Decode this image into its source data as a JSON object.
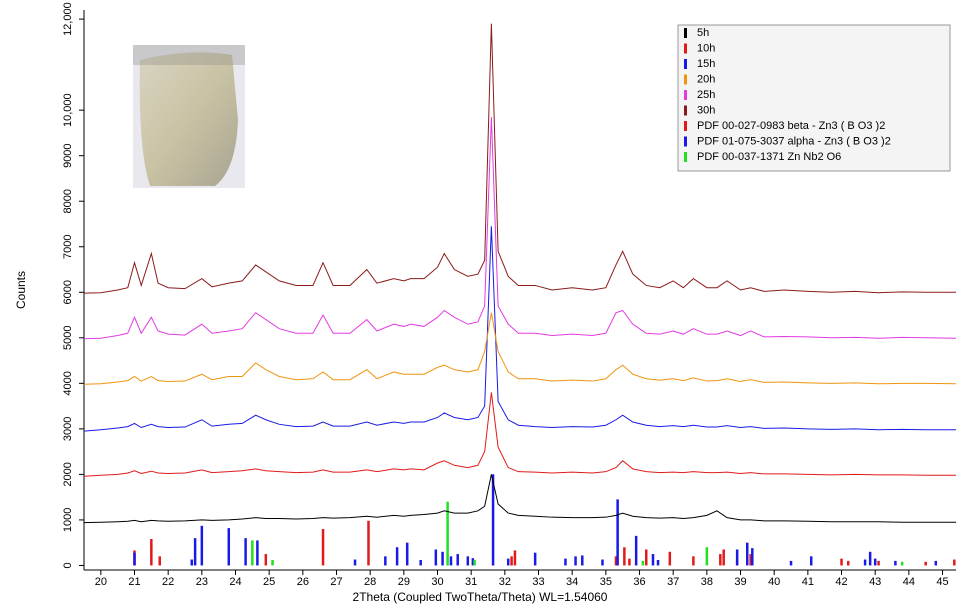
{
  "chart_data": {
    "type": "line",
    "x_label": "2Theta (Coupled TwoTheta/Theta) WL=1.54060",
    "y_label": "Counts",
    "xlim": [
      19.5,
      45.4
    ],
    "ylim": [
      -100,
      12200
    ],
    "xticks": [
      20,
      21,
      22,
      23,
      24,
      25,
      26,
      27,
      28,
      29,
      30,
      31,
      32,
      33,
      34,
      35,
      36,
      37,
      38,
      39,
      40,
      41,
      42,
      43,
      44,
      45
    ],
    "yticks": [
      0,
      1000,
      2000,
      3000,
      4000,
      5000,
      6000,
      7000,
      8000,
      9000,
      {
        "value": 10000,
        "label": "10,000"
      },
      {
        "value": 12000,
        "label": "12,000"
      }
    ],
    "legend": "upper right",
    "x": [
      19.5,
      20.0,
      20.5,
      20.8,
      21.0,
      21.2,
      21.5,
      21.7,
      22.0,
      22.5,
      23.0,
      23.3,
      23.8,
      24.2,
      24.6,
      24.9,
      25.3,
      25.8,
      26.3,
      26.6,
      26.9,
      27.4,
      27.9,
      28.2,
      28.7,
      29.0,
      29.2,
      29.6,
      30.0,
      30.2,
      30.5,
      30.9,
      31.2,
      31.4,
      31.6,
      31.8,
      32.1,
      32.4,
      32.9,
      33.4,
      34.0,
      34.6,
      35.0,
      35.3,
      35.5,
      35.8,
      36.2,
      36.6,
      37.0,
      37.3,
      37.6,
      38.0,
      38.3,
      38.6,
      39.0,
      39.3,
      39.7,
      40.3,
      41.0,
      41.7,
      42.4,
      43.1,
      43.8,
      44.5,
      45.4
    ],
    "series": [
      {
        "name": "5h",
        "color": "#000000",
        "values": [
          940,
          950,
          960,
          970,
          990,
          960,
          990,
          980,
          970,
          980,
          1000,
          990,
          1000,
          1020,
          1050,
          1030,
          1030,
          1020,
          1030,
          1050,
          1040,
          1050,
          1080,
          1060,
          1100,
          1080,
          1100,
          1120,
          1150,
          1200,
          1150,
          1150,
          1200,
          1300,
          2000,
          1350,
          1150,
          1100,
          1080,
          1060,
          1050,
          1050,
          1060,
          1100,
          1150,
          1080,
          1050,
          1040,
          1050,
          1030,
          1050,
          1100,
          1200,
          1050,
          1000,
          1000,
          980,
          980,
          970,
          960,
          960,
          960,
          950,
          950,
          950
        ]
      },
      {
        "name": "10h",
        "color": "#e11a1a",
        "values": [
          1960,
          1980,
          2000,
          2030,
          2080,
          2020,
          2070,
          2030,
          2020,
          2030,
          2100,
          2040,
          2060,
          2080,
          2120,
          2080,
          2060,
          2040,
          2050,
          2100,
          2050,
          2050,
          2100,
          2060,
          2120,
          2100,
          2120,
          2100,
          2250,
          2300,
          2200,
          2150,
          2200,
          2500,
          3800,
          2600,
          2150,
          2060,
          2050,
          2030,
          2050,
          2030,
          2060,
          2150,
          2300,
          2120,
          2060,
          2040,
          2050,
          2040,
          2060,
          2040,
          2040,
          2050,
          2020,
          2040,
          2010,
          2010,
          2000,
          1990,
          2000,
          1990,
          1990,
          1980,
          1980
        ]
      },
      {
        "name": "15h",
        "color": "#1a1ae6",
        "values": [
          2950,
          2980,
          3020,
          3050,
          3120,
          3030,
          3100,
          3050,
          3030,
          3040,
          3200,
          3060,
          3100,
          3120,
          3300,
          3200,
          3100,
          3050,
          3060,
          3150,
          3060,
          3060,
          3150,
          3080,
          3150,
          3120,
          3150,
          3150,
          3250,
          3350,
          3250,
          3200,
          3250,
          3500,
          7450,
          3600,
          3200,
          3080,
          3050,
          3030,
          3050,
          3040,
          3080,
          3200,
          3300,
          3150,
          3080,
          3050,
          3070,
          3050,
          3080,
          3040,
          3040,
          3070,
          3030,
          3050,
          3010,
          3020,
          3000,
          2990,
          3000,
          2980,
          2990,
          2980,
          2980
        ]
      },
      {
        "name": "20h",
        "color": "#f0940f",
        "values": [
          3980,
          3990,
          4030,
          4060,
          4150,
          4050,
          4150,
          4060,
          4040,
          4050,
          4200,
          4080,
          4150,
          4150,
          4450,
          4300,
          4150,
          4080,
          4100,
          4250,
          4080,
          4080,
          4300,
          4100,
          4250,
          4200,
          4200,
          4200,
          4350,
          4400,
          4300,
          4250,
          4300,
          4700,
          5550,
          4700,
          4250,
          4100,
          4100,
          4050,
          4070,
          4050,
          4100,
          4300,
          4400,
          4200,
          4100,
          4070,
          4100,
          4060,
          4120,
          4050,
          4060,
          4100,
          4040,
          4080,
          4020,
          4030,
          4010,
          4000,
          4010,
          3990,
          4000,
          4000,
          3990
        ]
      },
      {
        "name": "25h",
        "color": "#e23be2",
        "values": [
          4980,
          4990,
          5050,
          5100,
          5450,
          5100,
          5450,
          5150,
          5080,
          5060,
          5300,
          5100,
          5150,
          5200,
          5550,
          5400,
          5200,
          5100,
          5100,
          5500,
          5100,
          5100,
          5400,
          5150,
          5300,
          5250,
          5300,
          5250,
          5450,
          5600,
          5450,
          5300,
          5350,
          5700,
          9850,
          5700,
          5300,
          5100,
          5100,
          5050,
          5080,
          5050,
          5100,
          5550,
          5600,
          5300,
          5100,
          5080,
          5150,
          5080,
          5200,
          5080,
          5080,
          5150,
          5050,
          5150,
          5020,
          5030,
          5020,
          5000,
          5010,
          4990,
          5010,
          5000,
          4990
        ]
      },
      {
        "name": "30h",
        "color": "#8b1a1a",
        "values": [
          5980,
          5990,
          6050,
          6100,
          6650,
          6150,
          6850,
          6200,
          6100,
          6080,
          6300,
          6120,
          6200,
          6250,
          6600,
          6450,
          6250,
          6150,
          6150,
          6650,
          6150,
          6150,
          6500,
          6200,
          6300,
          6250,
          6300,
          6300,
          6550,
          6850,
          6500,
          6350,
          6400,
          6700,
          11900,
          6900,
          6350,
          6150,
          6150,
          6050,
          6100,
          6050,
          6100,
          6600,
          6900,
          6400,
          6150,
          6100,
          6250,
          6100,
          6300,
          6100,
          6100,
          6250,
          6050,
          6100,
          6020,
          6050,
          6020,
          6000,
          6020,
          5990,
          6010,
          6000,
          6000
        ]
      }
    ],
    "references": [
      {
        "name": "PDF 00-027-0983  beta - Zn3 ( B O3 )2",
        "color": "#e11a1a",
        "positions": [
          21.0,
          21.5,
          21.75,
          24.9,
          26.6,
          27.95,
          32.2,
          32.3,
          35.3,
          35.55,
          35.7,
          36.2,
          36.9,
          37.6,
          38.4,
          38.5,
          38.9,
          39.3,
          42.0,
          42.2,
          43.1,
          44.5,
          45.35
        ],
        "heights": [
          330,
          580,
          200,
          250,
          800,
          980,
          200,
          330,
          200,
          400,
          150,
          350,
          300,
          200,
          250,
          350,
          150,
          250,
          150,
          100,
          100,
          80,
          130
        ]
      },
      {
        "name": "PDF 01-075-3037  alpha - Zn3 ( B O3 )2",
        "color": "#1a1ae6",
        "positions": [
          21.0,
          22.7,
          22.8,
          23.0,
          23.8,
          24.3,
          24.65,
          27.55,
          28.45,
          28.8,
          29.1,
          29.5,
          29.95,
          30.15,
          30.4,
          30.6,
          30.9,
          31.05,
          31.65,
          32.1,
          32.9,
          33.8,
          34.1,
          34.3,
          34.9,
          35.35,
          35.9,
          36.4,
          36.55,
          38.9,
          39.2,
          39.35,
          40.5,
          41.1,
          42.7,
          42.85,
          43.0,
          43.6,
          44.8
        ],
        "heights": [
          280,
          130,
          600,
          870,
          820,
          600,
          550,
          130,
          200,
          400,
          500,
          120,
          350,
          300,
          200,
          250,
          200,
          160,
          2000,
          150,
          280,
          150,
          200,
          220,
          130,
          1450,
          650,
          250,
          120,
          350,
          500,
          380,
          100,
          200,
          130,
          300,
          150,
          100,
          100
        ]
      },
      {
        "name": "PDF 00-037-1371  Zn Nb2 O6",
        "color": "#22e022",
        "positions": [
          24.5,
          25.1,
          30.3,
          31.1,
          36.1,
          38.0,
          43.8
        ],
        "heights": [
          550,
          120,
          1400,
          120,
          100,
          400,
          80
        ]
      }
    ]
  }
}
